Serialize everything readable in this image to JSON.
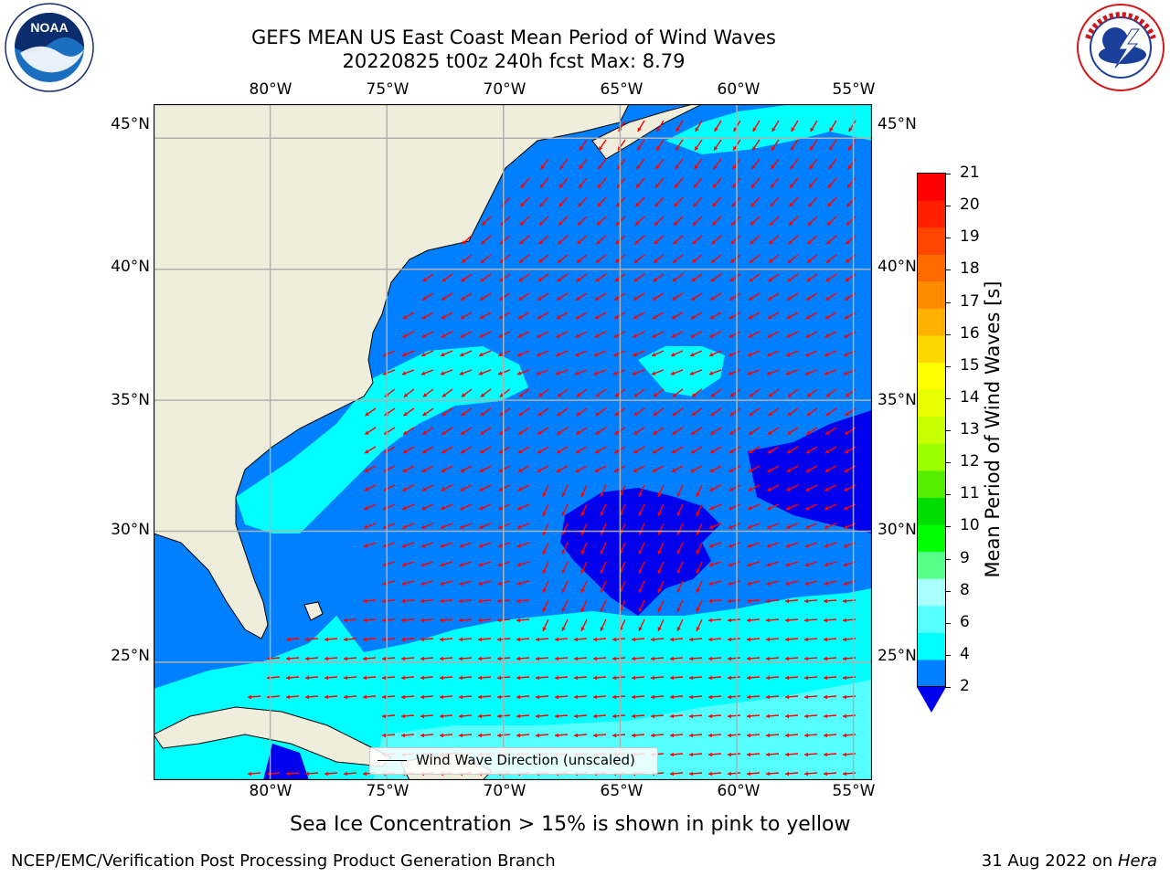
{
  "title": {
    "line1": "GEFS MEAN US East Coast Mean Period of Wind Waves",
    "line2": "20220825 t00z 240h fcst   Max: 8.79"
  },
  "logos": {
    "left": {
      "name": "NOAA",
      "text": "NOAA",
      "ring_text": "NATIONAL OCEANIC AND ATMOSPHERIC ADMINISTRATION · U.S. DEPARTMENT OF COMMERCE"
    },
    "right": {
      "name": "National Weather Service",
      "ring_text": "NATIONAL WEATHER SERVICE"
    }
  },
  "map": {
    "lon_range": [
      -85,
      -54.2
    ],
    "lat_range": [
      20.5,
      46.3
    ],
    "lon_ticks": [
      "80°W",
      "75°W",
      "70°W",
      "65°W",
      "60°W",
      "55°W"
    ],
    "lat_ticks": [
      "45°N",
      "40°N",
      "35°N",
      "30°N",
      "25°N"
    ],
    "grid": true,
    "legend": {
      "label": "Wind Wave Direction (unscaled)",
      "placement": "bottom-center"
    },
    "colors": {
      "land": "#efeedc",
      "ocean_2_4": "#0080ff",
      "ocean_4_6": "#00ffff",
      "ocean_6_8": "#55ffff",
      "ocean_lt2": "#0000ee",
      "arrow": "#ff0000",
      "grid": "#b0b0b0"
    },
    "note": "Sea Ice Concentration > 15% is shown in pink to yellow"
  },
  "colorbar": {
    "label": "Mean Period of Wind Waves [s]",
    "ticks": [
      "21",
      "20",
      "19",
      "18",
      "17",
      "16",
      "15",
      "14",
      "13",
      "12",
      "11",
      "10",
      "9",
      "8",
      "6",
      "4",
      "2"
    ],
    "colors": [
      "#ff0000",
      "#ff2000",
      "#ff4500",
      "#ff6a00",
      "#ff8c00",
      "#ffb000",
      "#ffd700",
      "#ffff00",
      "#e8ff00",
      "#c8ff00",
      "#9cff00",
      "#55ee00",
      "#00dd00",
      "#00ff00",
      "#55ff88",
      "#aaffff",
      "#55ffff",
      "#00ffff",
      "#0080ff"
    ],
    "extend_color": "#0000ee"
  },
  "footer": {
    "left": "NCEP/EMC/Verification Post Processing Product Generation Branch",
    "right_date": "31 Aug 2022 on ",
    "right_host": "Hera"
  }
}
